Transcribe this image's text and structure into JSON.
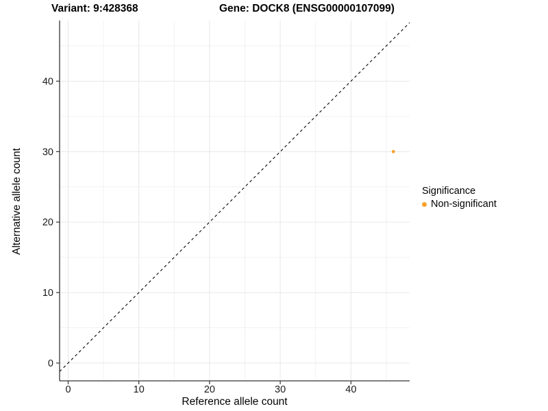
{
  "header": {
    "variant_title": "Variant: 9:428368",
    "gene_title": "Gene: DOCK8 (ENSG00000107099)"
  },
  "chart_data": {
    "type": "scatter",
    "title": "Variant: 9:428368   Gene: DOCK8 (ENSG00000107099)",
    "xlabel": "Reference allele count",
    "ylabel": "Alternative allele count",
    "x_ticks": [
      0,
      10,
      20,
      30,
      40
    ],
    "y_ticks": [
      0,
      10,
      20,
      30,
      40
    ],
    "x_minor_grid": [
      5,
      15,
      25,
      35,
      45
    ],
    "y_minor_grid": [
      5,
      15,
      25,
      35,
      45
    ],
    "xlim": [
      -1.21,
      48.3
    ],
    "ylim": [
      -2.53,
      48.6
    ],
    "grid": true,
    "legend_position": "right",
    "series": [
      {
        "name": "Non-significant",
        "color": "#F9A22A",
        "points": [
          {
            "x": 46,
            "y": 30
          }
        ]
      }
    ],
    "identity_line": {
      "equation": "y = x",
      "style": "dashed",
      "color": "#000000"
    },
    "legend": {
      "title": "Significance",
      "entries": [
        {
          "label": "Non-significant",
          "color": "#F9A22A"
        }
      ]
    }
  },
  "colors": {
    "background": "#FFFFFF",
    "grid_major": "#E7E7E7",
    "grid_minor": "#F1F1F1",
    "axis_line": "#333333",
    "tick_label": "#1A1A1A",
    "point": "#F9A22A"
  }
}
